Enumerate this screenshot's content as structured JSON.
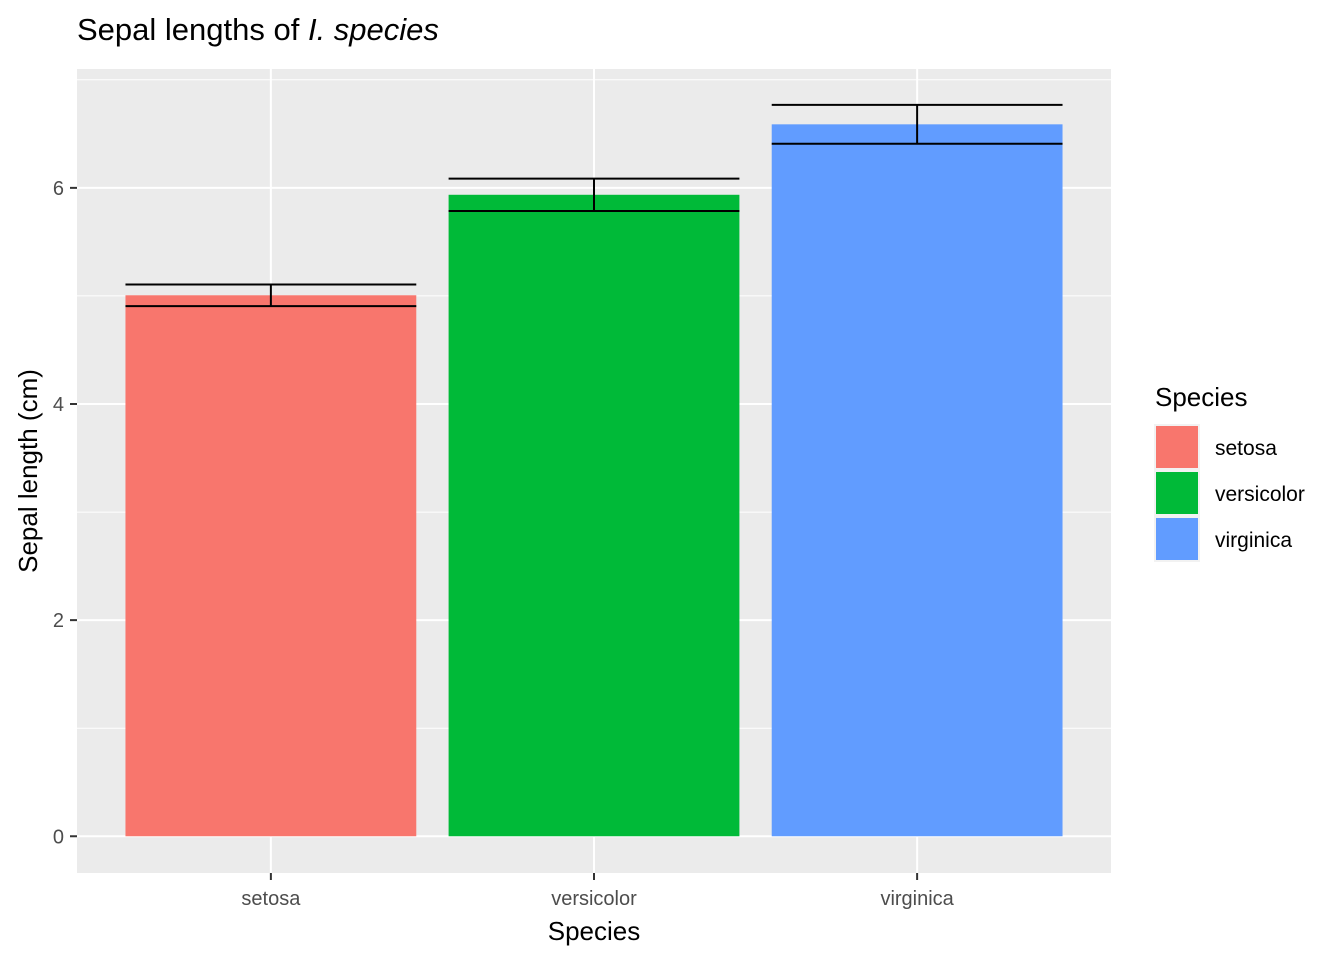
{
  "chart_data": {
    "type": "bar",
    "title_prefix": "Sepal lengths of ",
    "title_italic": "I. species",
    "xlabel": "Species",
    "ylabel": "Sepal length (cm)",
    "categories": [
      "setosa",
      "versicolor",
      "virginica"
    ],
    "values": [
      5.006,
      5.936,
      6.588
    ],
    "error_lower": [
      4.906,
      5.786,
      6.408
    ],
    "error_upper": [
      5.106,
      6.086,
      6.768
    ],
    "colors": [
      "#F8766D",
      "#00BA38",
      "#619CFF"
    ],
    "ylim": [
      -0.34,
      7.1
    ],
    "y_ticks": [
      0,
      2,
      4,
      6
    ],
    "grid": true,
    "legend": {
      "title": "Species",
      "placement": "right",
      "entries": [
        "setosa",
        "versicolor",
        "virginica"
      ]
    }
  }
}
